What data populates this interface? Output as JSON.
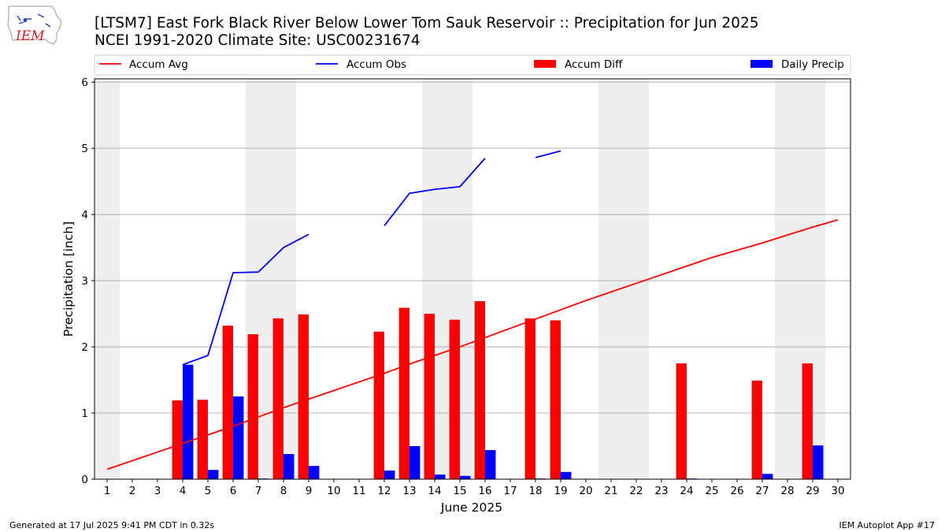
{
  "header": {
    "title_line1": "[LTSM7] East Fork Black River Below Lower Tom Sauk Reservoir :: Precipitation for Jun 2025",
    "title_line2": "NCEI 1991-2020 Climate Site: USC00231674"
  },
  "logo": {
    "text": "IEM",
    "icon": "iowa-state-map-icon"
  },
  "footer": {
    "left": "Generated at 17 Jul 2025 9:41 PM CDT in 0.32s",
    "right": "IEM Autoplot App #17"
  },
  "colors": {
    "accum_avg": "#ff0000",
    "accum_obs": "#0000ff",
    "accum_diff": "#ff0000",
    "daily_precip": "#0000ff",
    "weekend_shade": "#eeeeee",
    "grid": "#b0b0b0"
  },
  "chart_data": {
    "type": "bar",
    "xlabel": "June 2025",
    "ylabel": "Precipitation [inch]",
    "xlim": [
      0.5,
      30.5
    ],
    "ylim": [
      0,
      6.05
    ],
    "yticks": [
      0,
      1,
      2,
      3,
      4,
      5,
      6
    ],
    "grid": "horizontal",
    "legend_placement": "top",
    "x": [
      1,
      2,
      3,
      4,
      5,
      6,
      7,
      8,
      9,
      10,
      11,
      12,
      13,
      14,
      15,
      16,
      17,
      18,
      19,
      20,
      21,
      22,
      23,
      24,
      25,
      26,
      27,
      28,
      29,
      30
    ],
    "weekend_days": [
      1,
      7,
      8,
      14,
      15,
      21,
      22,
      28,
      29
    ],
    "legend": [
      "Accum Avg",
      "Accum Obs",
      "Accum Diff",
      "Daily Precip"
    ],
    "series": [
      {
        "name": "Accum Avg",
        "kind": "line",
        "values": [
          0.15,
          0.28,
          0.41,
          0.54,
          0.67,
          0.8,
          0.94,
          1.08,
          1.21,
          1.34,
          1.47,
          1.6,
          1.74,
          1.87,
          2.0,
          2.14,
          2.28,
          2.42,
          2.56,
          2.7,
          2.83,
          2.96,
          3.09,
          3.22,
          3.35,
          3.46,
          3.57,
          3.69,
          3.81,
          3.92
        ]
      },
      {
        "name": "Accum Obs",
        "kind": "line",
        "values": [
          null,
          null,
          null,
          1.73,
          1.87,
          3.12,
          3.13,
          3.5,
          3.7,
          null,
          null,
          3.83,
          4.32,
          4.38,
          4.42,
          4.85,
          null,
          4.86,
          4.96,
          null,
          null,
          null,
          null,
          null,
          null,
          null,
          null,
          null,
          null,
          null
        ]
      },
      {
        "name": "Accum Diff",
        "kind": "bar",
        "values": [
          null,
          null,
          null,
          1.19,
          1.2,
          2.32,
          2.19,
          2.43,
          2.49,
          null,
          null,
          2.23,
          2.59,
          2.5,
          2.41,
          2.69,
          null,
          2.43,
          2.4,
          null,
          null,
          null,
          null,
          1.75,
          null,
          null,
          1.49,
          null,
          1.75,
          null
        ]
      },
      {
        "name": "Daily Precip",
        "kind": "bar",
        "values": [
          null,
          null,
          null,
          1.73,
          0.14,
          1.25,
          0.01,
          0.38,
          0.2,
          null,
          null,
          0.13,
          0.5,
          0.07,
          0.05,
          0.44,
          null,
          0.01,
          0.11,
          null,
          null,
          null,
          null,
          0.01,
          null,
          null,
          0.08,
          null,
          0.51,
          null
        ]
      }
    ]
  }
}
